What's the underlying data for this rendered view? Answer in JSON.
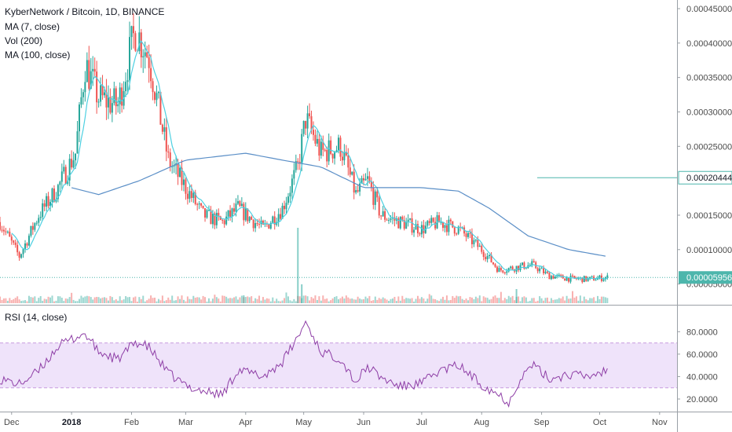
{
  "header": {
    "title": "KyberNetwork / Bitcoin, 1D, BINANCE",
    "ma7": "MA (7, close)",
    "vol": "Vol (200)",
    "ma100": "MA (100, close)",
    "rsi": "RSI (14, close)"
  },
  "colors": {
    "up": "#26a69a",
    "down": "#ef5350",
    "ma7": "#4dd0e1",
    "ma100": "#5b8fc7",
    "rsi_line": "#8e3ea6",
    "rsi_band": "#efe3fa",
    "price_line": "#4db6ac"
  },
  "price_axis": {
    "ticks": [
      "0.00045000",
      "0.00040000",
      "0.00035000",
      "0.00030000",
      "0.00025000",
      "0.00015000",
      "0.00010000",
      "0.00005000"
    ],
    "hline_label": "0.00020444",
    "last_label": "0.00005956"
  },
  "rsi_axis": {
    "ticks": [
      "80.0000",
      "60.0000",
      "40.0000",
      "20.0000"
    ]
  },
  "time_axis": {
    "labels": [
      {
        "text": "Dec",
        "bold": false
      },
      {
        "text": "2018",
        "bold": true
      },
      {
        "text": "Feb",
        "bold": false
      },
      {
        "text": "Mar",
        "bold": false
      },
      {
        "text": "Apr",
        "bold": false
      },
      {
        "text": "May",
        "bold": false
      },
      {
        "text": "Jun",
        "bold": false
      },
      {
        "text": "Jul",
        "bold": false
      },
      {
        "text": "Aug",
        "bold": false
      },
      {
        "text": "Sep",
        "bold": false
      },
      {
        "text": "Oct",
        "bold": false
      },
      {
        "text": "Nov",
        "bold": false
      }
    ]
  },
  "chart_data": {
    "type": "candlestick",
    "symbol": "KyberNetwork / Bitcoin",
    "interval": "1D",
    "exchange": "BINANCE",
    "price_range": [
      4.5e-05,
      0.00045
    ],
    "last_price": 5.956e-05,
    "horizontal_line": 0.00020444,
    "close_path": [
      {
        "date": "2017-11-25",
        "close": 0.00014
      },
      {
        "date": "2017-12-05",
        "close": 9e-05
      },
      {
        "date": "2017-12-15",
        "close": 0.00015
      },
      {
        "date": "2017-12-25",
        "close": 0.00019
      },
      {
        "date": "2018-01-03",
        "close": 0.00024
      },
      {
        "date": "2018-01-08",
        "close": 0.00037
      },
      {
        "date": "2018-01-15",
        "close": 0.00032
      },
      {
        "date": "2018-01-25",
        "close": 0.00031
      },
      {
        "date": "2018-02-03",
        "close": 0.00042
      },
      {
        "date": "2018-02-10",
        "close": 0.00038
      },
      {
        "date": "2018-02-20",
        "close": 0.00023
      },
      {
        "date": "2018-03-01",
        "close": 0.00019
      },
      {
        "date": "2018-03-10",
        "close": 0.00015
      },
      {
        "date": "2018-03-20",
        "close": 0.00014
      },
      {
        "date": "2018-03-28",
        "close": 0.00016
      },
      {
        "date": "2018-04-10",
        "close": 0.00013
      },
      {
        "date": "2018-04-20",
        "close": 0.00016
      },
      {
        "date": "2018-04-28",
        "close": 0.00022
      },
      {
        "date": "2018-05-02",
        "close": 0.00029
      },
      {
        "date": "2018-05-10",
        "close": 0.00024
      },
      {
        "date": "2018-05-20",
        "close": 0.00025
      },
      {
        "date": "2018-05-28",
        "close": 0.00018
      },
      {
        "date": "2018-06-03",
        "close": 0.0002
      },
      {
        "date": "2018-06-10",
        "close": 0.00015
      },
      {
        "date": "2018-06-20",
        "close": 0.00014
      },
      {
        "date": "2018-07-01",
        "close": 0.00013
      },
      {
        "date": "2018-07-10",
        "close": 0.00014
      },
      {
        "date": "2018-07-20",
        "close": 0.00013
      },
      {
        "date": "2018-08-01",
        "close": 0.0001
      },
      {
        "date": "2018-08-10",
        "close": 7e-05
      },
      {
        "date": "2018-08-20",
        "close": 7.5e-05
      },
      {
        "date": "2018-08-27",
        "close": 7.8e-05
      },
      {
        "date": "2018-09-05",
        "close": 6.2e-05
      },
      {
        "date": "2018-09-15",
        "close": 5.8e-05
      },
      {
        "date": "2018-09-25",
        "close": 5.7e-05
      },
      {
        "date": "2018-10-05",
        "close": 5.96e-05
      }
    ],
    "ma100_path": [
      {
        "date": "2018-01-01",
        "value": 0.00019
      },
      {
        "date": "2018-01-15",
        "value": 0.00018
      },
      {
        "date": "2018-02-05",
        "value": 0.0002
      },
      {
        "date": "2018-03-01",
        "value": 0.00023
      },
      {
        "date": "2018-04-01",
        "value": 0.00024
      },
      {
        "date": "2018-04-20",
        "value": 0.00023
      },
      {
        "date": "2018-05-10",
        "value": 0.00022
      },
      {
        "date": "2018-06-01",
        "value": 0.00019
      },
      {
        "date": "2018-07-01",
        "value": 0.00019
      },
      {
        "date": "2018-07-20",
        "value": 0.000185
      },
      {
        "date": "2018-08-05",
        "value": 0.00016
      },
      {
        "date": "2018-08-25",
        "value": 0.00012
      },
      {
        "date": "2018-09-15",
        "value": 0.0001
      },
      {
        "date": "2018-10-05",
        "value": 9e-05
      }
    ],
    "rsi": {
      "overbought": 70,
      "oversold": 30,
      "range": [
        15,
        90
      ],
      "path": [
        {
          "date": "2017-11-25",
          "value": 38
        },
        {
          "date": "2017-12-05",
          "value": 33
        },
        {
          "date": "2017-12-15",
          "value": 45
        },
        {
          "date": "2017-12-25",
          "value": 67
        },
        {
          "date": "2018-01-03",
          "value": 75
        },
        {
          "date": "2018-01-08",
          "value": 78
        },
        {
          "date": "2018-01-15",
          "value": 62
        },
        {
          "date": "2018-01-25",
          "value": 55
        },
        {
          "date": "2018-02-03",
          "value": 71
        },
        {
          "date": "2018-02-10",
          "value": 66
        },
        {
          "date": "2018-02-20",
          "value": 43
        },
        {
          "date": "2018-03-01",
          "value": 32
        },
        {
          "date": "2018-03-10",
          "value": 27
        },
        {
          "date": "2018-03-20",
          "value": 24
        },
        {
          "date": "2018-03-28",
          "value": 46
        },
        {
          "date": "2018-04-10",
          "value": 40
        },
        {
          "date": "2018-04-20",
          "value": 53
        },
        {
          "date": "2018-04-28",
          "value": 75
        },
        {
          "date": "2018-05-02",
          "value": 89
        },
        {
          "date": "2018-05-10",
          "value": 62
        },
        {
          "date": "2018-05-20",
          "value": 56
        },
        {
          "date": "2018-05-28",
          "value": 35
        },
        {
          "date": "2018-06-03",
          "value": 49
        },
        {
          "date": "2018-06-10",
          "value": 39
        },
        {
          "date": "2018-06-20",
          "value": 31
        },
        {
          "date": "2018-07-01",
          "value": 34
        },
        {
          "date": "2018-07-10",
          "value": 45
        },
        {
          "date": "2018-07-20",
          "value": 50
        },
        {
          "date": "2018-08-01",
          "value": 33
        },
        {
          "date": "2018-08-10",
          "value": 24
        },
        {
          "date": "2018-08-15",
          "value": 17
        },
        {
          "date": "2018-08-20",
          "value": 35
        },
        {
          "date": "2018-08-27",
          "value": 51
        },
        {
          "date": "2018-09-05",
          "value": 38
        },
        {
          "date": "2018-09-15",
          "value": 42
        },
        {
          "date": "2018-09-25",
          "value": 40
        },
        {
          "date": "2018-10-05",
          "value": 46
        }
      ]
    }
  }
}
